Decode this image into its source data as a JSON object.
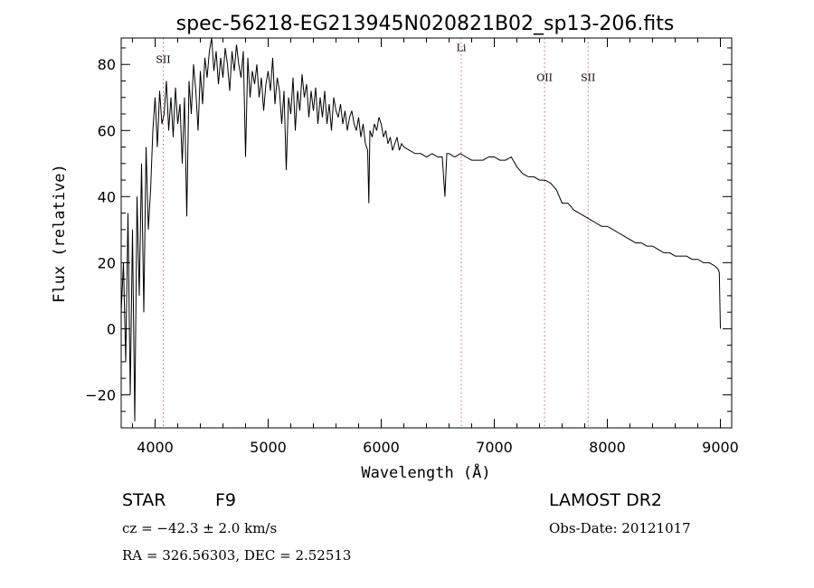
{
  "chart_data": {
    "type": "line",
    "title": "spec-56218-EG213945N020821B02_sp13-206.fits",
    "xlabel": "Wavelength (Å)",
    "ylabel": "Flux (relative)",
    "xlim": [
      3700,
      9100
    ],
    "ylim": [
      -30,
      88
    ],
    "xticks": [
      4000,
      5000,
      6000,
      7000,
      8000,
      9000
    ],
    "yticks": [
      -20,
      0,
      20,
      40,
      60,
      80
    ],
    "xtick_labels": [
      "4000",
      "5000",
      "6000",
      "7000",
      "8000",
      "9000"
    ],
    "ytick_labels": [
      "−20",
      "0",
      "20",
      "40",
      "60",
      "80"
    ],
    "grid": false,
    "series": [
      {
        "x": [
          3700,
          3720,
          3740,
          3760,
          3780,
          3800,
          3820,
          3840,
          3860,
          3880,
          3900,
          3920,
          3940,
          3960,
          3980,
          4000,
          4020,
          4040,
          4060,
          4080,
          4100,
          4120,
          4140,
          4160,
          4180,
          4200,
          4220,
          4240,
          4260,
          4280,
          4300,
          4320,
          4340,
          4360,
          4380,
          4400,
          4420,
          4440,
          4460,
          4480,
          4500,
          4520,
          4540,
          4560,
          4580,
          4600,
          4620,
          4640,
          4660,
          4680,
          4700,
          4720,
          4740,
          4760,
          4780,
          4800,
          4820,
          4840,
          4860,
          4880,
          4900,
          4920,
          4940,
          4960,
          4980,
          5000,
          5020,
          5040,
          5060,
          5080,
          5100,
          5120,
          5140,
          5160,
          5180,
          5200,
          5220,
          5240,
          5260,
          5280,
          5300,
          5320,
          5340,
          5360,
          5380,
          5400,
          5420,
          5440,
          5460,
          5480,
          5500,
          5520,
          5540,
          5560,
          5580,
          5600,
          5620,
          5640,
          5660,
          5680,
          5700,
          5720,
          5740,
          5760,
          5780,
          5800,
          5820,
          5840,
          5860,
          5880,
          5890,
          5900,
          5920,
          5940,
          5960,
          5980,
          6000,
          6020,
          6040,
          6060,
          6080,
          6100,
          6120,
          6140,
          6160,
          6180,
          6200,
          6250,
          6300,
          6350,
          6400,
          6450,
          6500,
          6540,
          6563,
          6580,
          6600,
          6650,
          6700,
          6750,
          6800,
          6850,
          6900,
          6950,
          7000,
          7050,
          7100,
          7150,
          7200,
          7250,
          7300,
          7350,
          7400,
          7450,
          7500,
          7550,
          7600,
          7650,
          7680,
          7700,
          7750,
          7800,
          7850,
          7900,
          7950,
          8000,
          8050,
          8100,
          8150,
          8200,
          8250,
          8300,
          8350,
          8400,
          8450,
          8500,
          8550,
          8600,
          8650,
          8700,
          8750,
          8800,
          8850,
          8900,
          8950,
          8980,
          8990,
          9000
        ],
        "y": [
          5,
          20,
          -10,
          35,
          -20,
          30,
          -28,
          40,
          10,
          50,
          5,
          55,
          30,
          42,
          60,
          70,
          55,
          72,
          62,
          65,
          75,
          60,
          70,
          58,
          73,
          62,
          68,
          50,
          70,
          34,
          75,
          65,
          80,
          72,
          60,
          78,
          68,
          82,
          76,
          84,
          88,
          78,
          84,
          74,
          82,
          76,
          85,
          80,
          72,
          84,
          78,
          86,
          80,
          76,
          84,
          52,
          82,
          70,
          78,
          74,
          80,
          70,
          76,
          66,
          74,
          78,
          72,
          82,
          68,
          76,
          72,
          62,
          72,
          48,
          70,
          65,
          76,
          60,
          72,
          66,
          77,
          70,
          74,
          64,
          72,
          66,
          73,
          62,
          70,
          64,
          72,
          62,
          68,
          60,
          70,
          66,
          64,
          68,
          62,
          66,
          60,
          64,
          66,
          62,
          60,
          64,
          58,
          62,
          56,
          54,
          38,
          60,
          58,
          62,
          60,
          64,
          62,
          58,
          60,
          56,
          58,
          54,
          56,
          58,
          54,
          56,
          55,
          54,
          53,
          53,
          52,
          53,
          52,
          52,
          40,
          53,
          53,
          52,
          53,
          52,
          51,
          51,
          51,
          52,
          52,
          51,
          51,
          52,
          49,
          47,
          46,
          46,
          45,
          45,
          44,
          42,
          38,
          38,
          37,
          36,
          35,
          34,
          33,
          32,
          31,
          31,
          30,
          29,
          28,
          27,
          26,
          26,
          25,
          25,
          24,
          23,
          23,
          22,
          22,
          22,
          21,
          21,
          20,
          20,
          19,
          18,
          17,
          0
        ]
      }
    ],
    "lines": [
      {
        "wavelength": 4072,
        "label": "SII",
        "label_y": 80.5
      },
      {
        "wavelength": 6708,
        "label": "Li",
        "label_y": 84.0
      },
      {
        "wavelength": 7445,
        "label": "OII",
        "label_y": 75.0
      },
      {
        "wavelength": 7830,
        "label": "SII",
        "label_y": 75.0
      }
    ]
  },
  "info": {
    "class": "STAR",
    "subclass": "F9",
    "survey": "LAMOST DR2",
    "cz": "cz = −42.3 ± 2.0 km/s",
    "obs_date": "Obs-Date: 20121017",
    "radec": "RA = 326.56303, DEC =   2.52513"
  }
}
